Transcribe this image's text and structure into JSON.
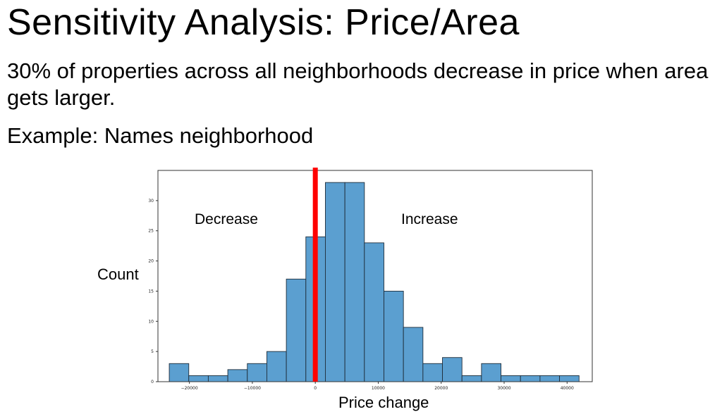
{
  "slide": {
    "title": "Sensitivity Analysis: Price/Area",
    "bullet1": "30% of properties across all neighborhoods decrease in price when area gets larger.",
    "bullet2": "Example: Names neighborhood"
  },
  "chart_data": {
    "type": "bar",
    "xlabel": "Price change",
    "ylabel": "Count",
    "annotations": [
      "Decrease",
      "Increase"
    ],
    "bar_color": "#5b9fd0",
    "marker_line": {
      "x": 0,
      "color": "#ff0000"
    },
    "xlim": [
      -25000,
      44000
    ],
    "ylim": [
      0,
      35
    ],
    "x_ticks": [
      -20000,
      -10000,
      0,
      10000,
      20000,
      30000,
      40000
    ],
    "x_tick_labels": [
      "−20000",
      "−10000",
      "0",
      "10000",
      "20000",
      "30000",
      "40000"
    ],
    "y_ticks": [
      0,
      5,
      10,
      15,
      20,
      25,
      30
    ],
    "bin_start": -23200,
    "bin_width": 3100,
    "values": [
      3,
      1,
      1,
      2,
      3,
      5,
      17,
      24,
      33,
      33,
      23,
      15,
      9,
      3,
      4,
      1,
      3,
      1,
      1,
      1,
      1
    ]
  }
}
